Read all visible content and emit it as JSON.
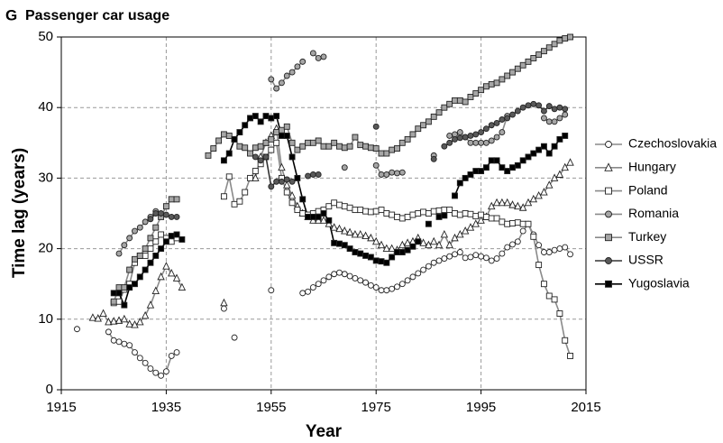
{
  "chart_data": {
    "type": "line",
    "panel_label": "G",
    "title": "Passenger car usage",
    "x_label": "Year",
    "y_label": "Time lag (years)",
    "xlim": [
      1915,
      2015
    ],
    "xticks": [
      1915,
      1935,
      1955,
      1975,
      1995,
      2015
    ],
    "ylim": [
      0,
      50
    ],
    "yticks": [
      0,
      10,
      20,
      30,
      40,
      50
    ],
    "grid": true,
    "legend": "right",
    "x": [
      1918,
      1919,
      1920,
      1921,
      1922,
      1923,
      1924,
      1925,
      1926,
      1927,
      1928,
      1929,
      1930,
      1931,
      1932,
      1933,
      1934,
      1935,
      1936,
      1937,
      1938,
      1939,
      1940,
      1941,
      1942,
      1943,
      1944,
      1945,
      1946,
      1947,
      1948,
      1949,
      1950,
      1951,
      1952,
      1953,
      1954,
      1955,
      1956,
      1957,
      1958,
      1959,
      1960,
      1961,
      1962,
      1963,
      1964,
      1965,
      1966,
      1967,
      1968,
      1969,
      1970,
      1971,
      1972,
      1973,
      1974,
      1975,
      1976,
      1977,
      1978,
      1979,
      1980,
      1981,
      1982,
      1983,
      1984,
      1985,
      1986,
      1987,
      1988,
      1989,
      1990,
      1991,
      1992,
      1993,
      1994,
      1995,
      1996,
      1997,
      1998,
      1999,
      2000,
      2001,
      2002,
      2003,
      2004,
      2005,
      2006,
      2007,
      2008,
      2009,
      2010,
      2011,
      2012
    ],
    "series": [
      {
        "name": "Czechoslovakia",
        "marker": "circle",
        "color": "#ffffff",
        "line_color": "#8a8a8a",
        "values": [
          8.6,
          null,
          null,
          null,
          null,
          null,
          8.2,
          7.0,
          6.8,
          6.5,
          6.3,
          5.3,
          4.5,
          3.8,
          3.0,
          2.4,
          2.0,
          2.6,
          4.8,
          5.3,
          null,
          null,
          null,
          null,
          null,
          null,
          null,
          null,
          11.5,
          null,
          7.4,
          null,
          null,
          null,
          null,
          null,
          null,
          14.1,
          null,
          null,
          null,
          null,
          null,
          13.7,
          13.9,
          14.5,
          15,
          15.5,
          16,
          16.4,
          16.6,
          16.4,
          16.1,
          15.8,
          15.5,
          15.2,
          14.8,
          14.5,
          14.1,
          14.1,
          14.3,
          14.6,
          15,
          15.5,
          16,
          16.5,
          17,
          17.5,
          18,
          18.3,
          18.6,
          18.9,
          19.2,
          19.5,
          18.7,
          18.8,
          19.1,
          18.9,
          18.7,
          18.3,
          18.6,
          19.3,
          20.2,
          20.6,
          21,
          22.5,
          23.5,
          22,
          20.5,
          19.5,
          19.5,
          19.8,
          20,
          20.2,
          19.2
        ]
      },
      {
        "name": "Hungary",
        "marker": "triangle",
        "color": "#ffffff",
        "line_color": "#8a8a8a",
        "values": [
          null,
          null,
          null,
          10.2,
          10.1,
          10.8,
          9.6,
          9.7,
          9.8,
          10,
          9.3,
          9.2,
          9.6,
          10.5,
          12,
          14,
          16,
          17.5,
          16.5,
          15.8,
          14.5,
          null,
          null,
          null,
          null,
          null,
          null,
          null,
          12.3,
          null,
          null,
          null,
          null,
          null,
          30,
          33,
          35,
          36,
          37,
          31.5,
          29,
          27.5,
          26,
          25,
          24.5,
          24,
          24,
          24,
          23.5,
          23,
          22.8,
          22.5,
          22.3,
          22,
          22,
          21.8,
          21.5,
          21,
          20.5,
          20,
          20,
          19.8,
          20.5,
          20.8,
          21,
          21.5,
          20.8,
          20.5,
          21,
          20.5,
          22,
          20.5,
          21.5,
          22,
          22.5,
          23,
          23.5,
          24,
          24.5,
          26,
          26.5,
          26.5,
          26.5,
          26.2,
          26,
          25.8,
          26.5,
          27,
          27.5,
          28,
          29,
          30,
          30.5,
          31.5,
          32.2
        ]
      },
      {
        "name": "Poland",
        "marker": "square",
        "color": "#ffffff",
        "line_color": "#8a8a8a",
        "values": [
          null,
          null,
          null,
          null,
          null,
          null,
          null,
          12.3,
          12.5,
          14.2,
          15,
          18,
          19,
          19,
          20,
          21,
          22,
          21.5,
          21,
          21.5,
          null,
          null,
          null,
          null,
          null,
          null,
          null,
          null,
          27.4,
          30.2,
          26.3,
          26.7,
          28,
          30,
          31,
          32,
          33,
          34,
          35,
          30,
          28,
          26.5,
          25.5,
          25,
          24.8,
          25,
          25.3,
          25.5,
          26,
          26.5,
          26.2,
          26,
          25.8,
          25.5,
          25.5,
          25.3,
          25.2,
          25.3,
          25.5,
          25,
          24.8,
          24.5,
          24.3,
          24.5,
          24.8,
          25,
          25.2,
          25,
          25.3,
          25.4,
          25.5,
          25.5,
          25,
          24.8,
          25,
          24.9,
          24.6,
          24.8,
          24.5,
          24.3,
          24.3,
          23.8,
          23.5,
          23.6,
          23.7,
          23.5,
          23.5,
          21.7,
          17.7,
          15,
          13.3,
          12.8,
          10.8,
          7,
          4.8
        ]
      },
      {
        "name": "Romania",
        "marker": "circle",
        "color": "#a6a6a6",
        "line_color": "#8a8a8a",
        "values": [
          null,
          null,
          null,
          null,
          null,
          null,
          null,
          null,
          19.3,
          20.5,
          21.5,
          22.5,
          23,
          23.8,
          24.5,
          25.3,
          null,
          null,
          null,
          null,
          null,
          null,
          null,
          null,
          null,
          null,
          null,
          null,
          null,
          null,
          null,
          null,
          null,
          null,
          null,
          null,
          null,
          44,
          42.7,
          43.5,
          44.5,
          45,
          45.8,
          46.5,
          null,
          47.7,
          47,
          47.2,
          null,
          null,
          null,
          31.5,
          null,
          null,
          null,
          null,
          null,
          31.8,
          30.5,
          30.5,
          30.8,
          30.7,
          30.8,
          null,
          null,
          null,
          null,
          null,
          33.2,
          null,
          null,
          36,
          36.2,
          36.5,
          35.8,
          35,
          35,
          35,
          35,
          35.3,
          35.8,
          36.5,
          38.8,
          null,
          null,
          null,
          null,
          null,
          null,
          38.5,
          38,
          38,
          38.5,
          39,
          null
        ]
      },
      {
        "name": "Turkey",
        "marker": "square",
        "color": "#a6a6a6",
        "line_color": "#8a8a8a",
        "values": [
          null,
          null,
          null,
          null,
          null,
          null,
          null,
          12.5,
          14.5,
          14.5,
          17,
          18.5,
          19,
          20,
          21.5,
          23,
          24.5,
          26,
          27,
          27,
          null,
          null,
          null,
          null,
          null,
          33.2,
          34.2,
          35.3,
          36.2,
          36,
          35.5,
          34.5,
          34.3,
          33.5,
          34.3,
          34.5,
          35,
          35.5,
          36.5,
          36.8,
          37.3,
          35,
          34,
          34.5,
          35,
          35,
          35.3,
          34.5,
          34.5,
          35,
          34.5,
          34.3,
          34.5,
          35.8,
          34.7,
          34.5,
          34.3,
          34.2,
          33.5,
          33.5,
          34,
          34.2,
          35,
          35.5,
          36.2,
          37,
          37.5,
          38,
          38.7,
          39.3,
          40,
          40.5,
          41,
          41,
          40.8,
          41.5,
          42,
          42.5,
          43,
          43.3,
          43.5,
          44,
          44.5,
          45,
          45.5,
          46,
          46.5,
          47,
          47.5,
          48,
          48.5,
          49,
          49.5,
          49.8,
          50
        ]
      },
      {
        "name": "USSR",
        "marker": "circle",
        "color": "#595959",
        "line_color": "#333333",
        "values": [
          null,
          null,
          null,
          null,
          null,
          null,
          null,
          null,
          null,
          null,
          null,
          null,
          null,
          null,
          24.2,
          25,
          25,
          24.8,
          24.5,
          24.5,
          null,
          null,
          null,
          null,
          null,
          null,
          null,
          null,
          null,
          null,
          null,
          null,
          null,
          null,
          33,
          32.5,
          33,
          28.8,
          29.5,
          29.5,
          29.8,
          29.5,
          null,
          null,
          30.3,
          30.5,
          30.5,
          null,
          null,
          null,
          null,
          null,
          null,
          null,
          null,
          null,
          null,
          37.3,
          null,
          null,
          null,
          null,
          null,
          null,
          null,
          null,
          null,
          null,
          32.7,
          null,
          34.5,
          35,
          35.5,
          35.7,
          35.8,
          36,
          36.2,
          36.5,
          37,
          37.5,
          37.8,
          38.3,
          38.5,
          39,
          39.5,
          40,
          40.3,
          40.5,
          40.3,
          39.5,
          40.2,
          39.8,
          40,
          39.8,
          null
        ]
      },
      {
        "name": "Yugoslavia",
        "marker": "square",
        "color": "#000000",
        "line_color": "#000000",
        "values": [
          null,
          null,
          null,
          null,
          null,
          null,
          null,
          13.7,
          13.7,
          12,
          14.5,
          15,
          16,
          17,
          18,
          19,
          20,
          21,
          21.8,
          22,
          21.3,
          null,
          null,
          null,
          null,
          null,
          null,
          null,
          32.5,
          33.5,
          35.5,
          36.5,
          37.5,
          38.5,
          38.8,
          38,
          38.8,
          38.5,
          38.8,
          36,
          36,
          33,
          30,
          27,
          24.5,
          24.5,
          24.5,
          25,
          24,
          20.8,
          20.7,
          20.5,
          20,
          19.5,
          19.3,
          19,
          18.8,
          18.3,
          18.2,
          18,
          18.8,
          19.5,
          19.5,
          19.8,
          20.3,
          21,
          null,
          23.5,
          null,
          24.5,
          24.7,
          null,
          27.5,
          29.3,
          30,
          30.5,
          31,
          31,
          31.5,
          32.5,
          32.5,
          31.5,
          31,
          31.5,
          31.8,
          32.5,
          33,
          33.5,
          34,
          34.5,
          33.5,
          34.5,
          35.5,
          36,
          null
        ]
      }
    ]
  }
}
